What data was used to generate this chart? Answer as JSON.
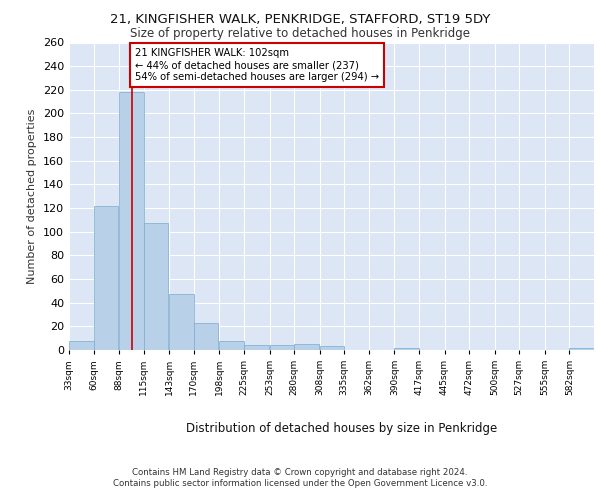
{
  "title_line1": "21, KINGFISHER WALK, PENKRIDGE, STAFFORD, ST19 5DY",
  "title_line2": "Size of property relative to detached houses in Penkridge",
  "xlabel": "Distribution of detached houses by size in Penkridge",
  "ylabel": "Number of detached properties",
  "bar_color": "#b8d0e8",
  "bar_edge_color": "#7aadce",
  "background_color": "#dce6f5",
  "grid_color": "#ffffff",
  "annotation_line_color": "#cc0000",
  "annotation_box_color": "#cc0000",
  "annotation_text": "21 KINGFISHER WALK: 102sqm\n← 44% of detached houses are smaller (237)\n54% of semi-detached houses are larger (294) →",
  "footer_text": "Contains HM Land Registry data © Crown copyright and database right 2024.\nContains public sector information licensed under the Open Government Licence v3.0.",
  "bins": [
    33,
    60,
    88,
    115,
    143,
    170,
    198,
    225,
    253,
    280,
    308,
    335,
    362,
    390,
    417,
    445,
    472,
    500,
    527,
    555,
    582
  ],
  "values": [
    8,
    122,
    218,
    107,
    47,
    23,
    8,
    4,
    4,
    5,
    3,
    0,
    0,
    2,
    0,
    0,
    0,
    0,
    0,
    0,
    2
  ],
  "property_size": 102,
  "ylim": [
    0,
    260
  ],
  "yticks": [
    0,
    20,
    40,
    60,
    80,
    100,
    120,
    140,
    160,
    180,
    200,
    220,
    240,
    260
  ]
}
